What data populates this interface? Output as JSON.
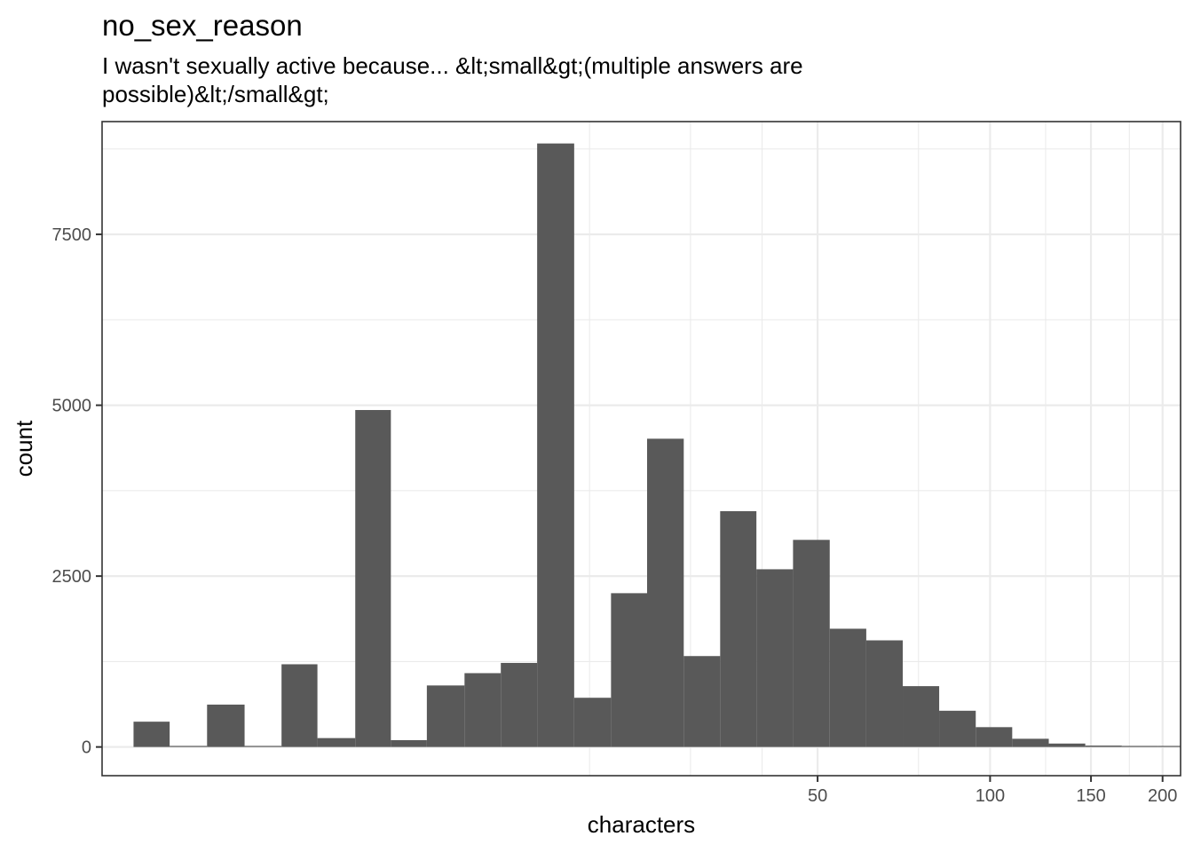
{
  "chart_data": {
    "type": "bar",
    "title": "no_sex_reason",
    "subtitle_lines": [
      "I wasn't sexually active because... &lt;small&gt;(multiple answers are",
      "possible)&lt;/small&gt;"
    ],
    "xlabel": "characters",
    "ylabel": "count",
    "x_scale": "log10",
    "x_ticks": [
      50,
      100,
      150,
      200
    ],
    "x_tick_labels": [
      "50",
      "100",
      "150",
      "200"
    ],
    "x_minor_gridlines": [
      20,
      30,
      40,
      75,
      125,
      175
    ],
    "y_ticks": [
      0,
      2500,
      5000,
      7500
    ],
    "y_tick_labels": [
      "0",
      "2500",
      "5000",
      "7500"
    ],
    "ylim": [
      -420,
      9150
    ],
    "xlim": [
      2.82,
      215
    ],
    "grid": true,
    "bar_color": "#595959",
    "bins": [
      {
        "x0": 3.2,
        "x1": 3.7,
        "count": 370
      },
      {
        "x0": 3.7,
        "x1": 4.3,
        "count": 0
      },
      {
        "x0": 4.3,
        "x1": 5.0,
        "count": 620
      },
      {
        "x0": 5.0,
        "x1": 5.8,
        "count": 0
      },
      {
        "x0": 5.8,
        "x1": 6.7,
        "count": 1210
      },
      {
        "x0": 6.7,
        "x1": 7.8,
        "count": 130
      },
      {
        "x0": 7.8,
        "x1": 9.0,
        "count": 4930
      },
      {
        "x0": 9.0,
        "x1": 10.4,
        "count": 100
      },
      {
        "x0": 10.4,
        "x1": 12.1,
        "count": 900
      },
      {
        "x0": 12.1,
        "x1": 14.0,
        "count": 1080
      },
      {
        "x0": 14.0,
        "x1": 16.2,
        "count": 1230
      },
      {
        "x0": 16.2,
        "x1": 18.8,
        "count": 8830
      },
      {
        "x0": 18.8,
        "x1": 21.8,
        "count": 720
      },
      {
        "x0": 21.8,
        "x1": 25.2,
        "count": 2250
      },
      {
        "x0": 25.2,
        "x1": 29.2,
        "count": 4510
      },
      {
        "x0": 29.2,
        "x1": 33.8,
        "count": 1330
      },
      {
        "x0": 33.8,
        "x1": 39.1,
        "count": 3450
      },
      {
        "x0": 39.1,
        "x1": 45.3,
        "count": 2600
      },
      {
        "x0": 45.3,
        "x1": 52.5,
        "count": 3030
      },
      {
        "x0": 52.5,
        "x1": 60.8,
        "count": 1730
      },
      {
        "x0": 60.8,
        "x1": 70.4,
        "count": 1560
      },
      {
        "x0": 70.4,
        "x1": 81.5,
        "count": 890
      },
      {
        "x0": 81.5,
        "x1": 94.4,
        "count": 530
      },
      {
        "x0": 94.4,
        "x1": 109.3,
        "count": 290
      },
      {
        "x0": 109.3,
        "x1": 126.6,
        "count": 120
      },
      {
        "x0": 126.6,
        "x1": 146.6,
        "count": 50
      },
      {
        "x0": 146.6,
        "x1": 169.8,
        "count": 20
      },
      {
        "x0": 169.8,
        "x1": 196.6,
        "count": 10
      },
      {
        "x0": 196.6,
        "x1": 227.7,
        "count": 5
      },
      {
        "x0": 227.7,
        "x1": 263.7,
        "count": 3
      }
    ]
  }
}
